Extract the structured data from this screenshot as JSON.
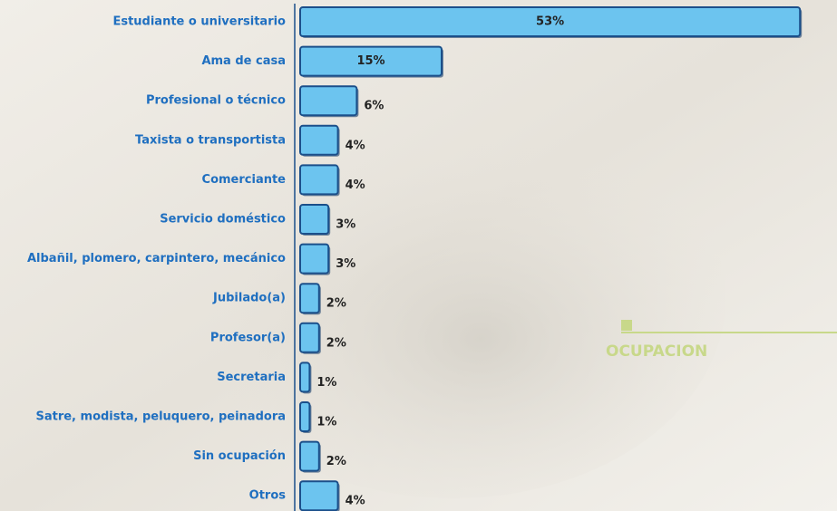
{
  "chart_data": {
    "type": "bar",
    "orientation": "horizontal",
    "title": "OCUPACION",
    "categories": [
      "Estudiante o universitario",
      "Ama de casa",
      "Profesional o técnico",
      "Taxista o transportista",
      "Comerciante",
      "Servicio doméstico",
      "Albañil, plomero, carpintero, mecánico",
      "Jubilado(a)",
      "Profesor(a)",
      "Secretaria",
      "Satre, modista, peluquero, peinadora",
      "Sin ocupación",
      "Otros"
    ],
    "values": [
      53,
      15,
      6,
      4,
      4,
      3,
      3,
      2,
      2,
      1,
      1,
      2,
      4
    ],
    "value_labels": [
      "53%",
      "15%",
      "6%",
      "4%",
      "4%",
      "3%",
      "3%",
      "2%",
      "2%",
      "1%",
      "1%",
      "2%",
      "4%"
    ],
    "color": "#6cc4ef"
  }
}
